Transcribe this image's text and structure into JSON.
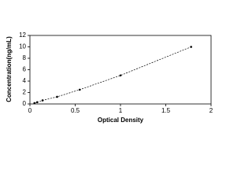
{
  "chart_data": {
    "type": "line",
    "x_label": "Optical Density",
    "y_label": "Concentration(ng/mL)",
    "x": [
      0.05,
      0.08,
      0.14,
      0.3,
      0.55,
      1.0,
      1.78
    ],
    "series": [
      {
        "color": "#000000",
        "values": [
          0.156,
          0.312,
          0.625,
          1.25,
          2.5,
          5,
          10
        ]
      }
    ],
    "xlim": [
      0,
      2
    ],
    "xticks": [
      0,
      0.5,
      1,
      1.5,
      2
    ],
    "ylim": [
      0,
      12
    ],
    "yticks": [
      0,
      2,
      4,
      6,
      8,
      10,
      12
    ],
    "grid": false,
    "line_style": "dashed"
  }
}
